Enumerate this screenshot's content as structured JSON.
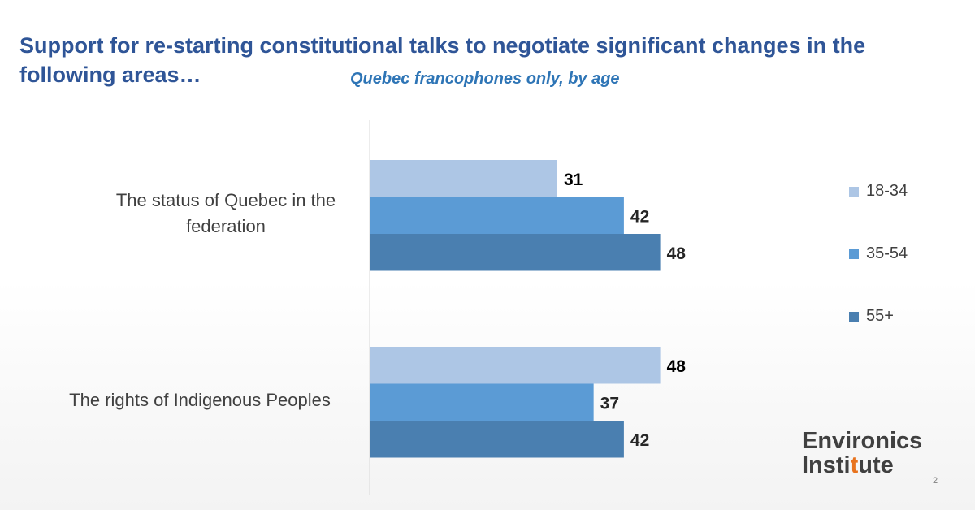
{
  "slide": {
    "title": "Support for re-starting constitutional talks to negotiate significant changes in the following areas…",
    "subtitle": "Quebec francophones only, by age",
    "page_number": "2"
  },
  "logo": {
    "line1": "Environics",
    "line2_part1": "Insti",
    "line2_accent": "t",
    "line2_part2": "ute",
    "accent_color": "#e8731e"
  },
  "colors": {
    "title": "#2f5597",
    "subtitle": "#2e75b6",
    "series": [
      "#adc6e5",
      "#5b9bd5",
      "#4a7fb0"
    ]
  },
  "chart_data": {
    "type": "bar",
    "orientation": "horizontal",
    "categories": [
      "The status of Quebec in the federation",
      "The rights of Indigenous Peoples"
    ],
    "series": [
      {
        "name": "18-34",
        "values": [
          31,
          48
        ]
      },
      {
        "name": "35-54",
        "values": [
          42,
          37
        ]
      },
      {
        "name": "55+",
        "values": [
          48,
          42
        ]
      }
    ],
    "data_labels": true,
    "legend_position": "right",
    "grid": false,
    "xlim": [
      0,
      50
    ]
  }
}
